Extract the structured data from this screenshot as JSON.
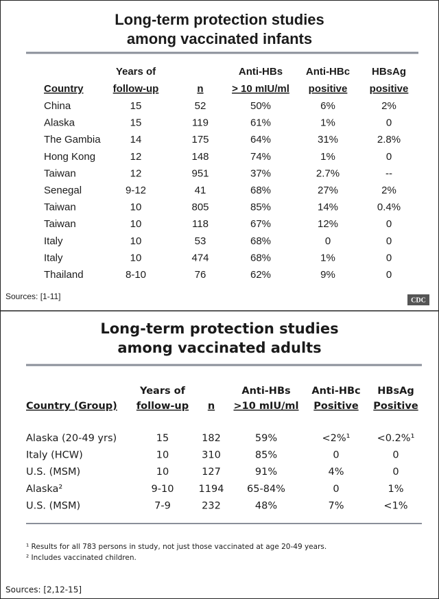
{
  "slides": [
    {
      "title": [
        "Long-term protection studies",
        "among vaccinated infants"
      ],
      "table": {
        "header": [
          {
            "line2": "Country"
          },
          {
            "line1": "Years of",
            "line2": "follow-up"
          },
          {
            "line2": "n"
          },
          {
            "line1": "Anti-HBs",
            "line2": "> 10 mIU/ml"
          },
          {
            "line1": "Anti-HBc",
            "line2": "positive"
          },
          {
            "line1": "HBsAg",
            "line2": "positive"
          }
        ],
        "rows": [
          [
            "China",
            "15",
            "52",
            "50%",
            "6%",
            "2%"
          ],
          [
            "Alaska",
            "15",
            "119",
            "61%",
            "1%",
            "0"
          ],
          [
            "The Gambia",
            "14",
            "175",
            "64%",
            "31%",
            "2.8%"
          ],
          [
            "Hong Kong",
            "12",
            "148",
            "74%",
            "1%",
            "0"
          ],
          [
            "Taiwan",
            "12",
            "951",
            "37%",
            "2.7%",
            "--"
          ],
          [
            "Senegal",
            "9-12",
            "41",
            "68%",
            "27%",
            "2%"
          ],
          [
            "Taiwan",
            "10",
            "805",
            "85%",
            "14%",
            "0.4%"
          ],
          [
            "Taiwan",
            "10",
            "118",
            "67%",
            "12%",
            "0"
          ],
          [
            "Italy",
            "10",
            "53",
            "68%",
            "0",
            "0"
          ],
          [
            "Italy",
            "10",
            "474",
            "68%",
            "1%",
            "0"
          ],
          [
            "Thailand",
            "8-10",
            "76",
            "62%",
            "9%",
            "0"
          ]
        ]
      },
      "sources": "Sources: [1-11]",
      "logo": "CDC"
    },
    {
      "title": [
        "Long-term protection studies",
        "among vaccinated adults"
      ],
      "table": {
        "header": [
          {
            "line2": "Country (Group)"
          },
          {
            "line1": "Years of",
            "line2": "follow-up"
          },
          {
            "line2": "n"
          },
          {
            "line1": "Anti-HBs",
            "line2": ">10 mIU/ml"
          },
          {
            "line1": "Anti-HBc",
            "line2": "Positive"
          },
          {
            "line1": "HBsAg",
            "line2": "Positive"
          }
        ],
        "rows": [
          [
            "Alaska (20-49 yrs)",
            "15",
            "182",
            "59%",
            "<2%¹",
            "<0.2%¹"
          ],
          [
            "Italy (HCW)",
            "10",
            "310",
            "85%",
            "0",
            "0"
          ],
          [
            "U.S. (MSM)",
            "10",
            "127",
            "91%",
            "4%",
            "0"
          ],
          [
            "Alaska²",
            "9-10",
            "1194",
            "65-84%",
            "0",
            "1%"
          ],
          [
            "U.S. (MSM)",
            "7-9",
            "232",
            "48%",
            "7%",
            "<1%"
          ]
        ]
      },
      "footnotes": [
        "¹ Results for all 783 persons in study, not just those vaccinated at age 20-49 years.",
        "² Includes vaccinated children."
      ],
      "sources": "Sources: [2,12-15]"
    }
  ]
}
